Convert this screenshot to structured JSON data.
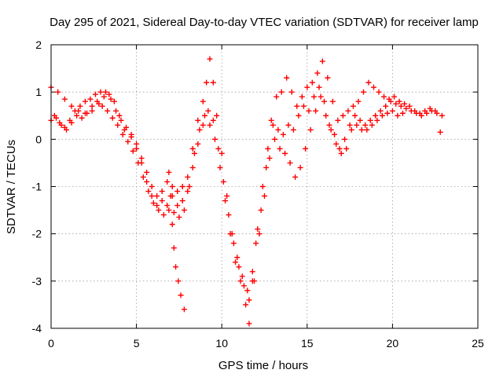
{
  "chart_data": {
    "type": "scatter",
    "title": "Day 295 of 2021, Sidereal Day-to-day VTEC variation (SDTVAR) for receiver lamp",
    "xlabel": "GPS time / hours",
    "ylabel": "SDTVAR / TECUs",
    "xlim": [
      0,
      25
    ],
    "ylim": [
      -4,
      2
    ],
    "xticks": [
      0,
      5,
      10,
      15,
      20,
      25
    ],
    "yticks": [
      -4,
      -3,
      -2,
      -1,
      0,
      1,
      2
    ],
    "grid": true,
    "marker": "+",
    "color": "#ff0000",
    "series": [
      {
        "points": [
          [
            0.0,
            1.1
          ],
          [
            0.4,
            1.0
          ],
          [
            0.8,
            0.85
          ],
          [
            1.2,
            0.7
          ],
          [
            1.6,
            0.6
          ],
          [
            2.0,
            0.55
          ],
          [
            2.4,
            0.6
          ],
          [
            2.8,
            0.75
          ],
          [
            3.1,
            0.9
          ],
          [
            3.4,
            0.95
          ],
          [
            3.7,
            0.8
          ],
          [
            4.0,
            0.5
          ],
          [
            4.3,
            0.2
          ],
          [
            4.7,
            0.05
          ],
          [
            5.0,
            -0.2
          ],
          [
            5.3,
            -0.5
          ],
          [
            5.6,
            -0.9
          ],
          [
            5.9,
            -1.2
          ],
          [
            6.2,
            -1.4
          ],
          [
            6.5,
            -1.3
          ],
          [
            6.8,
            -1.4
          ],
          [
            7.1,
            -1.2
          ],
          [
            7.4,
            -1.4
          ],
          [
            7.7,
            -1.3
          ],
          [
            8.0,
            -1.1
          ],
          [
            8.3,
            -0.6
          ],
          [
            8.6,
            -0.1
          ],
          [
            8.9,
            0.3
          ],
          [
            9.2,
            0.6
          ],
          [
            9.5,
            0.4
          ],
          [
            9.8,
            -0.2
          ],
          [
            10.1,
            -0.9
          ],
          [
            10.4,
            -1.6
          ],
          [
            10.7,
            -2.2
          ],
          [
            11.0,
            -2.7
          ],
          [
            11.3,
            -3.1
          ],
          [
            11.6,
            -3.4
          ],
          [
            11.8,
            -2.8
          ],
          [
            12.1,
            -1.9
          ],
          [
            12.4,
            -1.0
          ],
          [
            12.7,
            -0.2
          ],
          [
            13.0,
            0.3
          ],
          [
            13.3,
            0.2
          ],
          [
            13.6,
            0.1
          ],
          [
            13.9,
            0.3
          ],
          [
            14.2,
            0.2
          ],
          [
            14.5,
            0.5
          ],
          [
            14.8,
            0.7
          ],
          [
            15.1,
            0.6
          ],
          [
            15.4,
            0.9
          ],
          [
            15.7,
            1.1
          ],
          [
            16.0,
            0.8
          ],
          [
            16.3,
            0.3
          ],
          [
            16.6,
            0.1
          ],
          [
            16.9,
            -0.2
          ],
          [
            17.2,
            0.0
          ],
          [
            17.5,
            0.3
          ],
          [
            17.8,
            0.5
          ],
          [
            18.1,
            0.4
          ],
          [
            18.4,
            0.3
          ],
          [
            18.7,
            0.4
          ],
          [
            19.0,
            0.5
          ],
          [
            19.3,
            0.6
          ],
          [
            19.6,
            0.7
          ],
          [
            19.9,
            0.8
          ],
          [
            20.2,
            0.75
          ],
          [
            20.5,
            0.7
          ],
          [
            20.8,
            0.65
          ],
          [
            21.1,
            0.6
          ],
          [
            21.4,
            0.55
          ],
          [
            21.7,
            0.5
          ],
          [
            22.0,
            0.55
          ],
          [
            22.3,
            0.6
          ],
          [
            22.6,
            0.55
          ],
          [
            22.9,
            0.5
          ]
        ]
      },
      {
        "points": [
          [
            0.0,
            0.4
          ],
          [
            0.3,
            0.45
          ],
          [
            0.6,
            0.3
          ],
          [
            0.9,
            0.2
          ],
          [
            1.2,
            0.35
          ],
          [
            1.5,
            0.5
          ],
          [
            1.8,
            0.45
          ],
          [
            2.1,
            0.55
          ],
          [
            2.4,
            0.7
          ],
          [
            2.7,
            0.8
          ],
          [
            3.0,
            0.7
          ],
          [
            3.3,
            0.6
          ],
          [
            3.6,
            0.45
          ],
          [
            3.9,
            0.3
          ],
          [
            4.2,
            0.1
          ],
          [
            4.5,
            -0.05
          ],
          [
            4.8,
            -0.25
          ],
          [
            5.1,
            -0.5
          ],
          [
            5.4,
            -0.8
          ],
          [
            5.7,
            -1.1
          ],
          [
            6.0,
            -1.35
          ],
          [
            6.3,
            -1.5
          ],
          [
            6.6,
            -1.6
          ],
          [
            6.9,
            -1.5
          ],
          [
            7.2,
            -1.55
          ],
          [
            7.5,
            -1.65
          ],
          [
            7.8,
            -1.5
          ],
          [
            8.1,
            -1.0
          ],
          [
            8.4,
            -0.3
          ],
          [
            8.7,
            0.2
          ],
          [
            9.0,
            0.5
          ],
          [
            9.3,
            0.3
          ],
          [
            9.6,
            0.0
          ],
          [
            9.9,
            -0.6
          ],
          [
            10.2,
            -1.3
          ],
          [
            10.5,
            -2.0
          ],
          [
            10.8,
            -2.6
          ],
          [
            11.1,
            -3.0
          ],
          [
            11.4,
            -3.5
          ],
          [
            11.6,
            -3.9
          ],
          [
            11.9,
            -3.0
          ],
          [
            12.2,
            -2.0
          ],
          [
            12.5,
            -1.2
          ],
          [
            12.8,
            -0.4
          ],
          [
            13.1,
            0.0
          ],
          [
            13.4,
            -0.2
          ],
          [
            13.7,
            -0.3
          ],
          [
            14.0,
            -0.5
          ],
          [
            14.3,
            -0.8
          ],
          [
            14.6,
            -0.6
          ],
          [
            14.9,
            -0.2
          ],
          [
            15.2,
            0.2
          ],
          [
            15.5,
            0.6
          ],
          [
            15.8,
            0.9
          ],
          [
            16.1,
            0.5
          ],
          [
            16.4,
            0.2
          ],
          [
            16.7,
            -0.1
          ],
          [
            17.0,
            -0.3
          ],
          [
            17.3,
            -0.2
          ],
          [
            17.6,
            0.2
          ],
          [
            17.9,
            0.3
          ],
          [
            18.2,
            0.2
          ],
          [
            18.5,
            0.2
          ],
          [
            18.8,
            0.3
          ],
          [
            19.1,
            0.4
          ],
          [
            19.4,
            0.5
          ],
          [
            19.7,
            0.55
          ],
          [
            20.0,
            0.6
          ],
          [
            20.3,
            0.5
          ],
          [
            20.6,
            0.55
          ]
        ]
      },
      {
        "points": [
          [
            0.2,
            0.5
          ],
          [
            0.5,
            0.35
          ],
          [
            0.8,
            0.25
          ],
          [
            1.1,
            0.4
          ],
          [
            1.4,
            0.6
          ],
          [
            1.7,
            0.7
          ],
          [
            2.0,
            0.8
          ],
          [
            2.3,
            0.85
          ],
          [
            2.6,
            0.95
          ],
          [
            2.9,
            1.0
          ],
          [
            3.2,
            1.0
          ],
          [
            3.5,
            0.85
          ],
          [
            3.8,
            0.6
          ],
          [
            4.1,
            0.4
          ],
          [
            4.4,
            0.25
          ],
          [
            4.7,
            0.1
          ],
          [
            5.0,
            -0.1
          ],
          [
            5.3,
            -0.4
          ],
          [
            5.6,
            -0.7
          ],
          [
            5.9,
            -1.0
          ],
          [
            6.2,
            -1.2
          ],
          [
            6.5,
            -1.1
          ],
          [
            6.8,
            -0.9
          ],
          [
            7.1,
            -1.0
          ],
          [
            7.4,
            -1.1
          ],
          [
            7.7,
            -1.0
          ],
          [
            8.0,
            -0.8
          ],
          [
            8.3,
            -0.2
          ],
          [
            8.6,
            0.4
          ],
          [
            8.9,
            0.8
          ],
          [
            9.1,
            1.2
          ],
          [
            9.3,
            1.7
          ],
          [
            9.5,
            1.2
          ],
          [
            9.7,
            0.5
          ],
          [
            10.0,
            -0.3
          ],
          [
            10.3,
            -1.2
          ],
          [
            10.6,
            -2.0
          ],
          [
            10.9,
            -2.5
          ],
          [
            11.2,
            -2.9
          ],
          [
            11.5,
            -3.2
          ],
          [
            11.8,
            -3.0
          ],
          [
            12.0,
            -2.2
          ],
          [
            12.3,
            -1.5
          ],
          [
            12.6,
            -0.6
          ],
          [
            12.9,
            0.4
          ],
          [
            13.2,
            0.9
          ],
          [
            13.5,
            1.0
          ],
          [
            13.8,
            1.3
          ],
          [
            14.1,
            1.0
          ],
          [
            14.4,
            0.7
          ],
          [
            14.7,
            0.9
          ],
          [
            15.0,
            1.1
          ],
          [
            15.3,
            1.2
          ],
          [
            15.6,
            1.4
          ],
          [
            15.9,
            1.65
          ],
          [
            16.2,
            1.3
          ],
          [
            16.5,
            0.8
          ],
          [
            16.8,
            0.4
          ],
          [
            17.1,
            0.5
          ],
          [
            17.4,
            0.6
          ],
          [
            17.7,
            0.7
          ],
          [
            18.0,
            0.8
          ],
          [
            18.3,
            1.0
          ],
          [
            18.6,
            1.2
          ],
          [
            18.9,
            1.1
          ],
          [
            19.2,
            1.0
          ],
          [
            19.5,
            0.9
          ],
          [
            19.8,
            0.85
          ],
          [
            20.1,
            0.9
          ],
          [
            20.4,
            0.8
          ],
          [
            20.7,
            0.75
          ],
          [
            21.0,
            0.7
          ],
          [
            21.3,
            0.6
          ],
          [
            21.6,
            0.55
          ],
          [
            21.9,
            0.6
          ],
          [
            22.2,
            0.65
          ],
          [
            22.5,
            0.6
          ],
          [
            22.8,
            0.15
          ]
        ]
      },
      {
        "points": [
          [
            6.9,
            -0.7
          ],
          [
            7.0,
            -1.2
          ],
          [
            7.1,
            -1.8
          ],
          [
            7.2,
            -2.3
          ],
          [
            7.3,
            -2.7
          ],
          [
            7.45,
            -3.0
          ],
          [
            7.6,
            -3.3
          ],
          [
            7.8,
            -3.6
          ]
        ]
      }
    ]
  }
}
